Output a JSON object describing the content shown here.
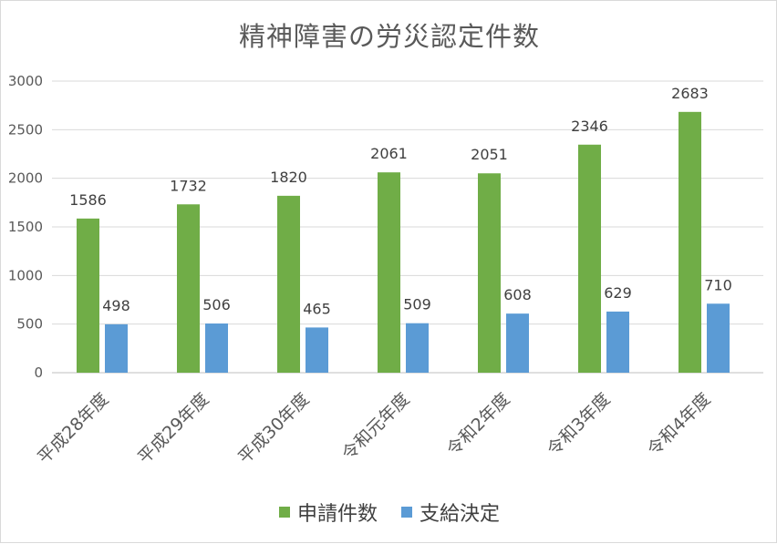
{
  "chart_data": {
    "type": "bar",
    "title": "精神障害の労災認定件数",
    "categories": [
      "平成28年度",
      "平成29年度",
      "平成30年度",
      "令和元年度",
      "令和2年度",
      "令和3年度",
      "令和4年度"
    ],
    "series": [
      {
        "name": "申請件数",
        "color": "#70ad47",
        "values": [
          1586,
          1732,
          1820,
          2061,
          2051,
          2346,
          2683
        ]
      },
      {
        "name": "支給決定",
        "color": "#5b9bd5",
        "values": [
          498,
          506,
          465,
          509,
          608,
          629,
          710
        ]
      }
    ],
    "yticks": [
      0,
      500,
      1000,
      1500,
      2000,
      2500,
      3000
    ],
    "ylim": [
      0,
      3000
    ],
    "grid": true,
    "legend_position": "bottom",
    "data_labels": true
  }
}
